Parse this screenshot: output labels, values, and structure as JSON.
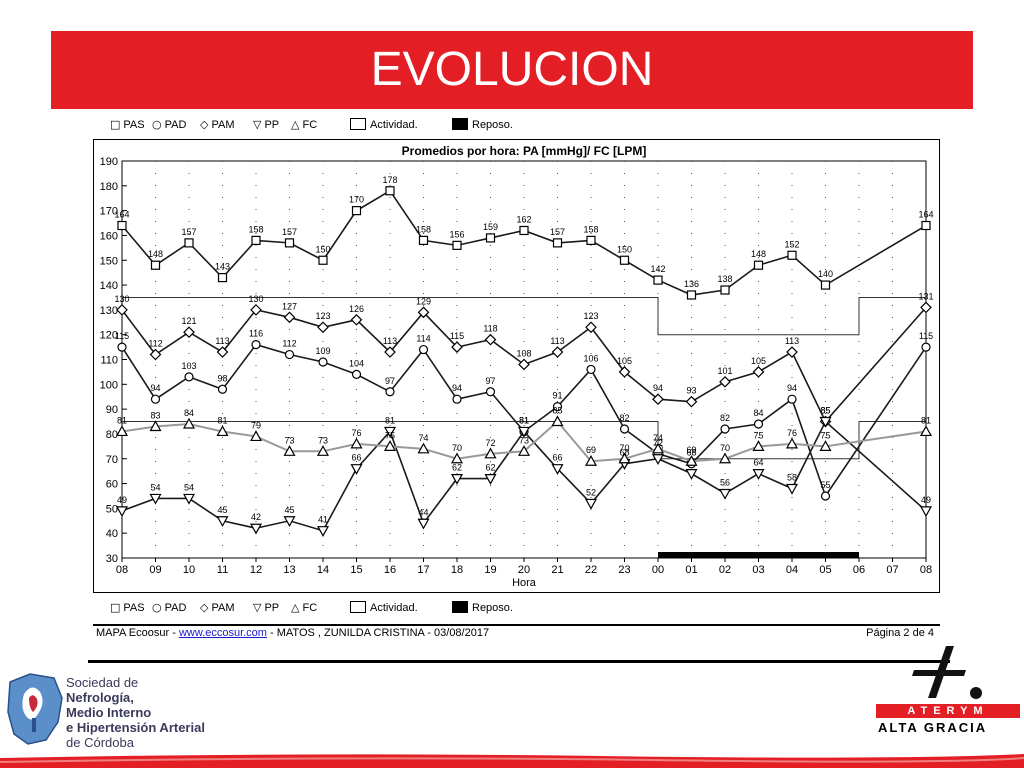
{
  "slide": {
    "title": "EVOLUCION"
  },
  "legend": {
    "items": [
      {
        "symbol": "□",
        "label": "PAS"
      },
      {
        "symbol": "○",
        "label": "PAD"
      },
      {
        "symbol": "◇",
        "label": "PAM"
      },
      {
        "symbol": "▽",
        "label": "PP"
      },
      {
        "symbol": "△",
        "label": "FC"
      }
    ],
    "activity_label": "Actividad.",
    "rest_label": "Reposo."
  },
  "footer": {
    "prefix": "MAPA Ecoosur - ",
    "link": "www.eccosur.com",
    "suffix": " - MATOS , ZUNILDA CRISTINA - 03/08/2017",
    "page": "Página 2 de 4"
  },
  "logo_left": {
    "line1": "Sociedad de",
    "line2": "Nefrología,",
    "line3": "Medio Interno",
    "line4": "e Hipertensión Arterial",
    "line5": "de Córdoba"
  },
  "logo_right": {
    "brand": "ATERYM",
    "subtitle": "ALTA GRACIA"
  },
  "colors": {
    "banner": "#e31e24",
    "series_dark": "#1a1a1a",
    "series_fc": "#999999"
  },
  "chart_data": {
    "type": "line",
    "title": "Promedios por hora: PA [mmHg]/ FC [LPM]",
    "xlabel": "Hora",
    "ylabel": "",
    "ylim": [
      30,
      190
    ],
    "yticks": [
      30,
      40,
      50,
      60,
      70,
      80,
      90,
      100,
      110,
      120,
      130,
      140,
      150,
      160,
      170,
      180,
      190
    ],
    "categories": [
      "08",
      "09",
      "10",
      "11",
      "12",
      "13",
      "14",
      "15",
      "16",
      "17",
      "18",
      "19",
      "20",
      "21",
      "22",
      "23",
      "00",
      "01",
      "02",
      "03",
      "04",
      "05",
      "06",
      "07",
      "08"
    ],
    "grid": "dotted",
    "series": [
      {
        "name": "PAS",
        "marker": "square",
        "values": [
          164,
          148,
          157,
          143,
          158,
          157,
          150,
          170,
          178,
          158,
          156,
          159,
          162,
          157,
          158,
          150,
          142,
          136,
          138,
          148,
          152,
          140,
          null,
          null,
          164
        ]
      },
      {
        "name": "PAM",
        "marker": "diamond",
        "values": [
          130,
          112,
          121,
          113,
          130,
          127,
          123,
          126,
          113,
          129,
          115,
          118,
          108,
          113,
          123,
          105,
          94,
          93,
          101,
          105,
          113,
          85,
          null,
          null,
          131
        ]
      },
      {
        "name": "PAD",
        "marker": "circle",
        "values": [
          115,
          94,
          103,
          98,
          116,
          112,
          109,
          104,
          97,
          114,
          94,
          97,
          81,
          91,
          106,
          82,
          72,
          68,
          82,
          84,
          94,
          55,
          null,
          null,
          115
        ]
      },
      {
        "name": "PP",
        "marker": "triangle-down",
        "values": [
          49,
          54,
          54,
          45,
          42,
          45,
          41,
          66,
          81,
          44,
          62,
          62,
          81,
          66,
          52,
          68,
          70,
          64,
          56,
          64,
          58,
          85,
          null,
          null,
          49
        ]
      },
      {
        "name": "FC",
        "marker": "triangle-up",
        "values": [
          81,
          83,
          84,
          81,
          79,
          73,
          73,
          76,
          75,
          74,
          70,
          72,
          73,
          85,
          69,
          70,
          74,
          69,
          70,
          75,
          76,
          75,
          null,
          null,
          81
        ]
      }
    ],
    "threshold_upper": {
      "values": [
        135,
        135,
        135,
        135,
        135,
        135,
        135,
        135,
        135,
        135,
        135,
        135,
        135,
        135,
        135,
        135,
        120,
        120,
        120,
        120,
        120,
        120,
        135,
        135,
        135
      ]
    },
    "threshold_lower": {
      "values": [
        85,
        85,
        85,
        85,
        85,
        85,
        85,
        85,
        85,
        85,
        85,
        85,
        85,
        85,
        85,
        85,
        70,
        70,
        70,
        70,
        70,
        70,
        85,
        85,
        85
      ]
    },
    "rest_period": {
      "from": "00",
      "to": "06"
    }
  }
}
